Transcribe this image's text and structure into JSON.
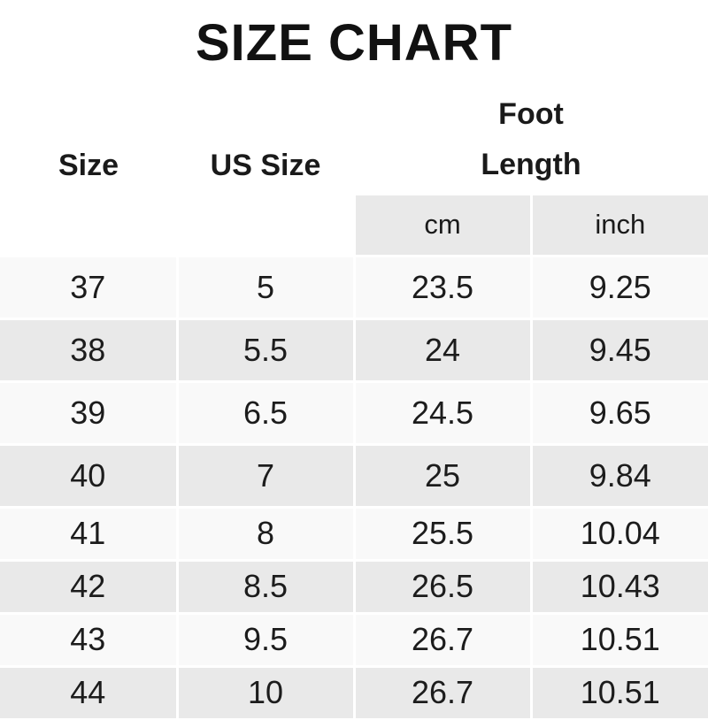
{
  "title": "SIZE CHART",
  "table": {
    "headers": {
      "size": "Size",
      "us_size": "US Size",
      "foot": "Foot",
      "length": "Length",
      "cm": "cm",
      "inch": "inch"
    }
  },
  "colors": {
    "gray_cell": "#e9e9e9",
    "light_cell": "#f9f9f9",
    "text": "#1c1c1c"
  },
  "chart_data": {
    "type": "table",
    "title": "SIZE CHART",
    "columns": [
      "Size",
      "US Size",
      "Foot Length cm",
      "Foot Length inch"
    ],
    "rows": [
      [
        "37",
        "5",
        "23.5",
        "9.25"
      ],
      [
        "38",
        "5.5",
        "24",
        "9.45"
      ],
      [
        "39",
        "6.5",
        "24.5",
        "9.65"
      ],
      [
        "40",
        "7",
        "25",
        "9.84"
      ],
      [
        "41",
        "8",
        "25.5",
        "10.04"
      ],
      [
        "42",
        "8.5",
        "26.5",
        "10.43"
      ],
      [
        "43",
        "9.5",
        "26.7",
        "10.51"
      ],
      [
        "44",
        "10",
        "26.7",
        "10.51"
      ]
    ]
  }
}
